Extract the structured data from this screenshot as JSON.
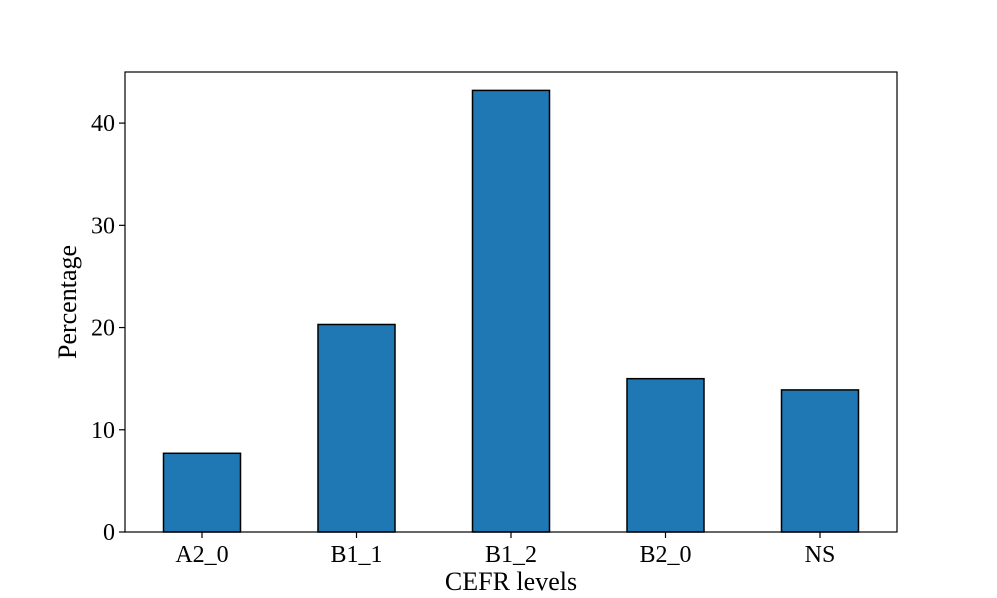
{
  "chart_data": {
    "type": "bar",
    "categories": [
      "A2_0",
      "B1_1",
      "B1_2",
      "B2_0",
      "NS"
    ],
    "values": [
      7.7,
      20.3,
      43.2,
      15.0,
      13.9
    ],
    "xlabel": "CEFR levels",
    "ylabel": "Percentage",
    "ylim": [
      0,
      45
    ],
    "yticks": [
      0,
      10,
      20,
      30,
      40
    ],
    "bar_color": "#1f77b4",
    "edge_color": "#000000",
    "grid": false
  }
}
